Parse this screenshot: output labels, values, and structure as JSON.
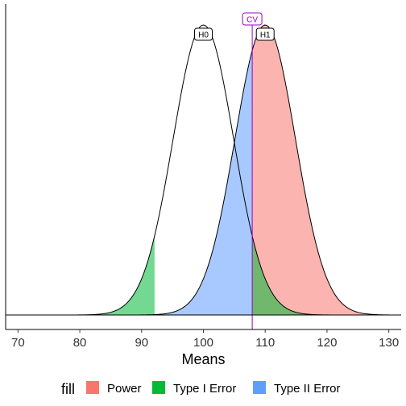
{
  "chart_data": {
    "type": "area",
    "title": "",
    "xlabel": "Means",
    "ylabel": "",
    "xlim": [
      68,
      132
    ],
    "x_ticks": [
      70,
      80,
      90,
      100,
      110,
      120,
      130
    ],
    "x_tick_labels": [
      "70",
      "80",
      "90",
      "100",
      "110",
      "120",
      "130"
    ],
    "grid": false,
    "legend_position": "bottom",
    "distributions": [
      {
        "label": "H0",
        "mean": 100,
        "sd": 4.9
      },
      {
        "label": "H1",
        "mean": 110,
        "sd": 4.9
      }
    ],
    "critical_value": {
      "label": "CV",
      "x": 107.9,
      "color": "#9400D3"
    },
    "lower_cutoff": 92.1,
    "regions": [
      {
        "name": "Power",
        "from": 107.9,
        "to": 130,
        "under": "H1",
        "color": "#F8766D"
      },
      {
        "name": "Type I Error",
        "from": 107.9,
        "to": 130,
        "under": "H0",
        "color": "#00BA38"
      },
      {
        "name": "Type I Error",
        "from": 70,
        "to": 92.1,
        "under": "H0",
        "color": "#00BA38"
      },
      {
        "name": "Type II Error",
        "from": 70,
        "to": 107.9,
        "under": "H1",
        "color": "#619CFF"
      }
    ],
    "legend": {
      "title": "fill",
      "entries": [
        {
          "label": "Power",
          "color": "#F8766D"
        },
        {
          "label": "Type I Error",
          "color": "#00BA38"
        },
        {
          "label": "Type II Error",
          "color": "#619CFF"
        }
      ]
    }
  }
}
